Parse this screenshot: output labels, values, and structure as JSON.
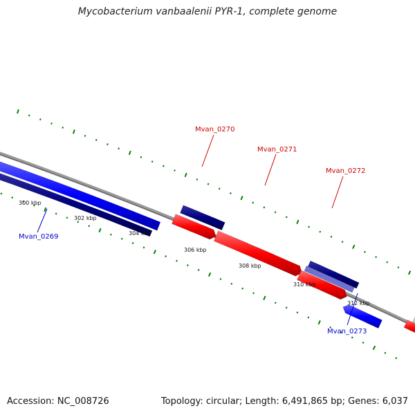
{
  "header": {
    "title": "Mycobacterium vanbaalenii PYR-1, complete genome"
  },
  "footer": {
    "accession": "Accession: NC_008726",
    "summary": "Topology: circular; Length: 6,491,865 bp; Genes: 6,037"
  },
  "colors": {
    "forward_gene": "#ff0000",
    "reverse_gene": "#0000ff",
    "forward_label": "#cc0000",
    "reverse_label": "#0000cc",
    "dark_bar": "#000080",
    "light_bar": "#7070d0",
    "grey_bar": "#c8c8c8",
    "backbone": "#808080",
    "tick": "#008000"
  },
  "position_labels": [
    "300 kbp",
    "302 kbp",
    "304 kbp",
    "306 kbp",
    "308 kbp",
    "310 kbp",
    "312 kbp"
  ],
  "gene_labels": [
    {
      "name": "Mvan_0269",
      "strand": "reverse"
    },
    {
      "name": "Mvan_0270",
      "strand": "forward"
    },
    {
      "name": "Mvan_0271",
      "strand": "forward"
    },
    {
      "name": "Mvan_0272",
      "strand": "forward"
    },
    {
      "name": "Mvan_0273",
      "strand": "reverse"
    }
  ]
}
